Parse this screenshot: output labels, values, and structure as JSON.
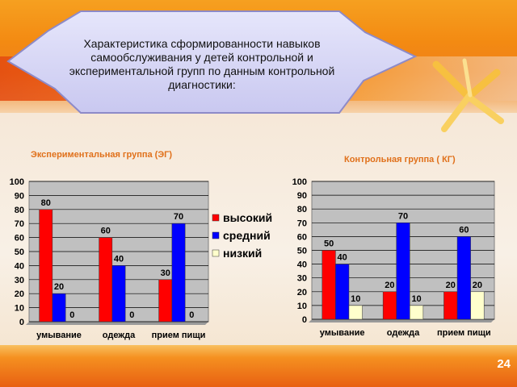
{
  "banner": {
    "text": "Характеристика сформированности навыков самообслуживания у детей контрольной и экспериментальной групп по данным контрольной диагностики:"
  },
  "page_number": "24",
  "colors": {
    "high": "#ff0000",
    "medium": "#0000ff",
    "low": "#ffffcc",
    "plot_bg": "#c0c0c0",
    "section_title": "#e0701a"
  },
  "chart_data": [
    {
      "type": "bar",
      "title": "Экспериментальная группа (ЭГ)",
      "categories": [
        "умывание",
        "одежда",
        "прием пищи"
      ],
      "series": [
        {
          "name": "высокий",
          "values": [
            80,
            60,
            30
          ]
        },
        {
          "name": "средний",
          "values": [
            20,
            40,
            70
          ]
        },
        {
          "name": "низкий",
          "values": [
            0,
            0,
            0
          ]
        }
      ],
      "ylim": [
        0,
        100
      ],
      "yticks": [
        0,
        10,
        20,
        30,
        40,
        50,
        60,
        70,
        80,
        90,
        100
      ],
      "grid": true,
      "legend": "right"
    },
    {
      "type": "bar",
      "title": "Контрольная группа ( КГ)",
      "categories": [
        "умывание",
        "одежда",
        "прием пищи"
      ],
      "series": [
        {
          "name": "высокий",
          "values": [
            50,
            20,
            20
          ]
        },
        {
          "name": "средний",
          "values": [
            40,
            70,
            60
          ]
        },
        {
          "name": "низкий",
          "values": [
            10,
            10,
            20
          ]
        }
      ],
      "ylim": [
        0,
        100
      ],
      "yticks": [
        0,
        10,
        20,
        30,
        40,
        50,
        60,
        70,
        80,
        90,
        100
      ],
      "grid": true,
      "legend": "none"
    }
  ]
}
